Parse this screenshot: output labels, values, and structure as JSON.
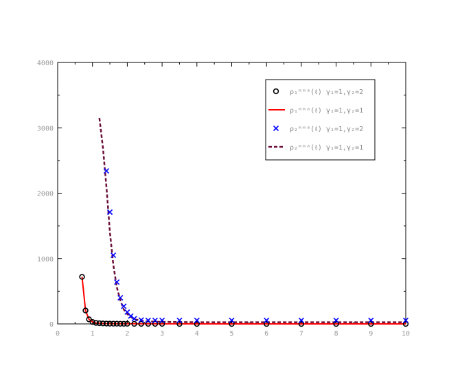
{
  "chart_data": {
    "type": "line",
    "title": "",
    "xlabel": "",
    "ylabel": "",
    "xlim": [
      0,
      10
    ],
    "ylim": [
      0,
      4000
    ],
    "xticks": [
      "0",
      "1",
      "2",
      "3",
      "4",
      "5",
      "6",
      "7",
      "8",
      "9",
      "10"
    ],
    "yticks": [
      "0",
      "1000",
      "2000",
      "3000",
      "4000"
    ],
    "grid": false,
    "legend_position": "top-right",
    "series": [
      {
        "name": "ρ₁ᵐᵐᵃ(ℓ) γ₁=1,γ₂=2",
        "style": "circle-markers",
        "color": "#000000",
        "x": [
          0.7,
          0.8,
          0.9,
          1.0,
          1.1,
          1.2,
          1.3,
          1.4,
          1.5,
          1.6,
          1.7,
          1.8,
          1.9,
          2.0,
          2.2,
          2.4,
          2.6,
          2.8,
          3.0,
          3.5,
          4.0,
          5.0,
          6.0,
          7.0,
          8.0,
          9.0,
          10.0
        ],
        "y": [
          720,
          205,
          70,
          30,
          15,
          10,
          7,
          5,
          4,
          3,
          3,
          2,
          2,
          2,
          1,
          1,
          1,
          1,
          1,
          0,
          0,
          0,
          0,
          0,
          0,
          0,
          0
        ]
      },
      {
        "name": "ρ₁ᵐᵐᵃ(ℓ) γ₁=1,γ₂=1",
        "style": "solid-line",
        "color": "#ff0000",
        "x": [
          0.7,
          0.8,
          0.9,
          1.0,
          1.1,
          1.2,
          1.4,
          1.6,
          2.0,
          3.0,
          5.0,
          10.0
        ],
        "y": [
          720,
          205,
          70,
          30,
          15,
          10,
          5,
          3,
          2,
          1,
          0,
          0
        ]
      },
      {
        "name": "ρ₂ᵐᵐᵃ(ℓ) γ₁=1,γ₂=2",
        "style": "x-markers",
        "color": "#0000ff",
        "x": [
          1.4,
          1.5,
          1.6,
          1.7,
          1.8,
          1.9,
          2.0,
          2.1,
          2.2,
          2.4,
          2.6,
          2.8,
          3.0,
          3.5,
          4.0,
          5.0,
          6.0,
          7.0,
          8.0,
          9.0,
          10.0
        ],
        "y": [
          2340,
          1710,
          1050,
          640,
          400,
          270,
          180,
          120,
          80,
          60,
          55,
          55,
          55,
          55,
          55,
          55,
          55,
          55,
          55,
          55,
          55
        ]
      },
      {
        "name": "ρ₂ᵐᵐᵃ(ℓ) γ₁=1,γ₂=1",
        "style": "dashed-line",
        "color": "#6b0f3a",
        "x": [
          1.2,
          1.3,
          1.4,
          1.5,
          1.6,
          1.7,
          1.8,
          1.9,
          2.0,
          2.2,
          2.5,
          3.0,
          4.0,
          5.0,
          7.0,
          10.0
        ],
        "y": [
          3150,
          2700,
          2100,
          1400,
          900,
          560,
          360,
          220,
          150,
          70,
          40,
          30,
          25,
          25,
          25,
          25
        ]
      }
    ]
  }
}
